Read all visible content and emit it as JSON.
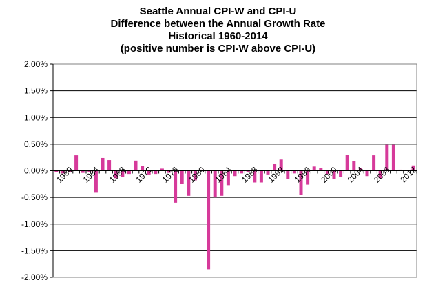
{
  "chart_data": {
    "type": "bar",
    "title_lines": [
      "Seattle Annual CPI-W and CPI-U",
      "Difference between the Annual Growth Rate",
      "Historical 1960-2014",
      "(positive number is CPI-W above CPI-U)"
    ],
    "xlabel": "",
    "ylabel": "",
    "ylim": [
      -2.0,
      2.0
    ],
    "y_ticks": [
      "2.00%",
      "1.50%",
      "1.00%",
      "0.50%",
      "0.00%",
      "-0.50%",
      "-1.00%",
      "-1.50%",
      "-2.00%"
    ],
    "y_tick_values": [
      2.0,
      1.5,
      1.0,
      0.5,
      0.0,
      -0.5,
      -1.0,
      -1.5,
      -2.0
    ],
    "grid": true,
    "bar_color": "#d63a9a",
    "categories": [
      1960,
      1961,
      1962,
      1963,
      1964,
      1965,
      1966,
      1967,
      1968,
      1969,
      1970,
      1971,
      1972,
      1973,
      1974,
      1975,
      1976,
      1977,
      1978,
      1979,
      1980,
      1981,
      1982,
      1983,
      1984,
      1985,
      1986,
      1987,
      1988,
      1989,
      1990,
      1991,
      1992,
      1993,
      1994,
      1995,
      1996,
      1997,
      1998,
      1999,
      2000,
      2001,
      2002,
      2003,
      2004,
      2005,
      2006,
      2007,
      2008,
      2009,
      2010,
      2011,
      2012,
      2013,
      2014
    ],
    "x_tick_labels": [
      "1960",
      "1964",
      "1968",
      "1972",
      "1976",
      "1980",
      "1984",
      "1988",
      "1992",
      "1996",
      "2000",
      "2004",
      "2008",
      "2012"
    ],
    "x_tick_years": [
      1960,
      1964,
      1968,
      1972,
      1976,
      1980,
      1984,
      1988,
      1992,
      1996,
      2000,
      2004,
      2008,
      2012
    ],
    "values": [
      -0.02,
      -0.05,
      -0.03,
      0.29,
      -0.04,
      -0.03,
      -0.4,
      0.24,
      0.2,
      -0.14,
      -0.12,
      -0.06,
      0.19,
      0.09,
      -0.07,
      -0.06,
      0.04,
      -0.04,
      -0.6,
      -0.25,
      -0.47,
      -0.18,
      0.02,
      -1.85,
      -0.5,
      -0.47,
      -0.27,
      -0.1,
      -0.05,
      -0.03,
      -0.22,
      -0.22,
      -0.07,
      0.13,
      0.21,
      -0.15,
      -0.05,
      -0.45,
      -0.26,
      0.08,
      0.05,
      -0.06,
      -0.16,
      -0.12,
      0.3,
      0.18,
      0.05,
      -0.1,
      0.29,
      -0.14,
      0.49,
      0.49,
      0.02,
      0.01,
      0.1
    ]
  }
}
